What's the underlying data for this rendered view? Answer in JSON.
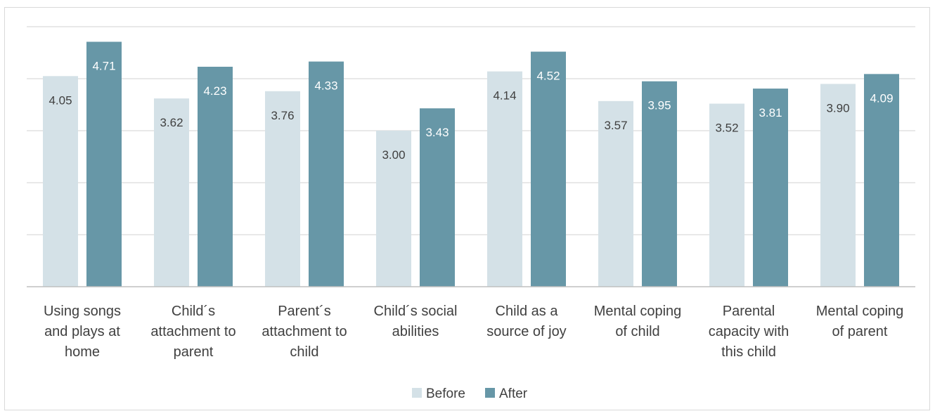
{
  "chart_data": {
    "type": "bar",
    "categories": [
      [
        "Using songs",
        "and plays at",
        "home"
      ],
      [
        "Child´s",
        "attachment to",
        "parent"
      ],
      [
        "Parent´s",
        "attachment to",
        "child"
      ],
      [
        "Child´s social",
        "abilities"
      ],
      [
        "Child as a",
        "source of joy"
      ],
      [
        "Mental coping",
        "of child"
      ],
      [
        "Parental",
        "capacity with",
        "this child"
      ],
      [
        "Mental coping",
        "of parent"
      ]
    ],
    "series": [
      {
        "name": "Before",
        "color": "#d4e1e7",
        "label_color": "#404040",
        "values": [
          4.05,
          3.62,
          3.76,
          3.0,
          4.14,
          3.57,
          3.52,
          3.9
        ],
        "labels": [
          "4.05",
          "3.62",
          "3.76",
          "3.00",
          "4.14",
          "3.57",
          "3.52",
          "3.90"
        ]
      },
      {
        "name": "After",
        "color": "#6797a7",
        "label_color": "#ffffff",
        "values": [
          4.71,
          4.23,
          4.33,
          3.43,
          4.52,
          3.95,
          3.81,
          4.09
        ],
        "labels": [
          "4.71",
          "4.23",
          "4.33",
          "3.43",
          "4.52",
          "3.95",
          "3.81",
          "4.09"
        ]
      }
    ],
    "ylim": [
      0,
      5
    ],
    "grid": true,
    "legend_position": "bottom",
    "gridline_color": "#d9d9d9",
    "axis_color": "#bfbfbf"
  }
}
